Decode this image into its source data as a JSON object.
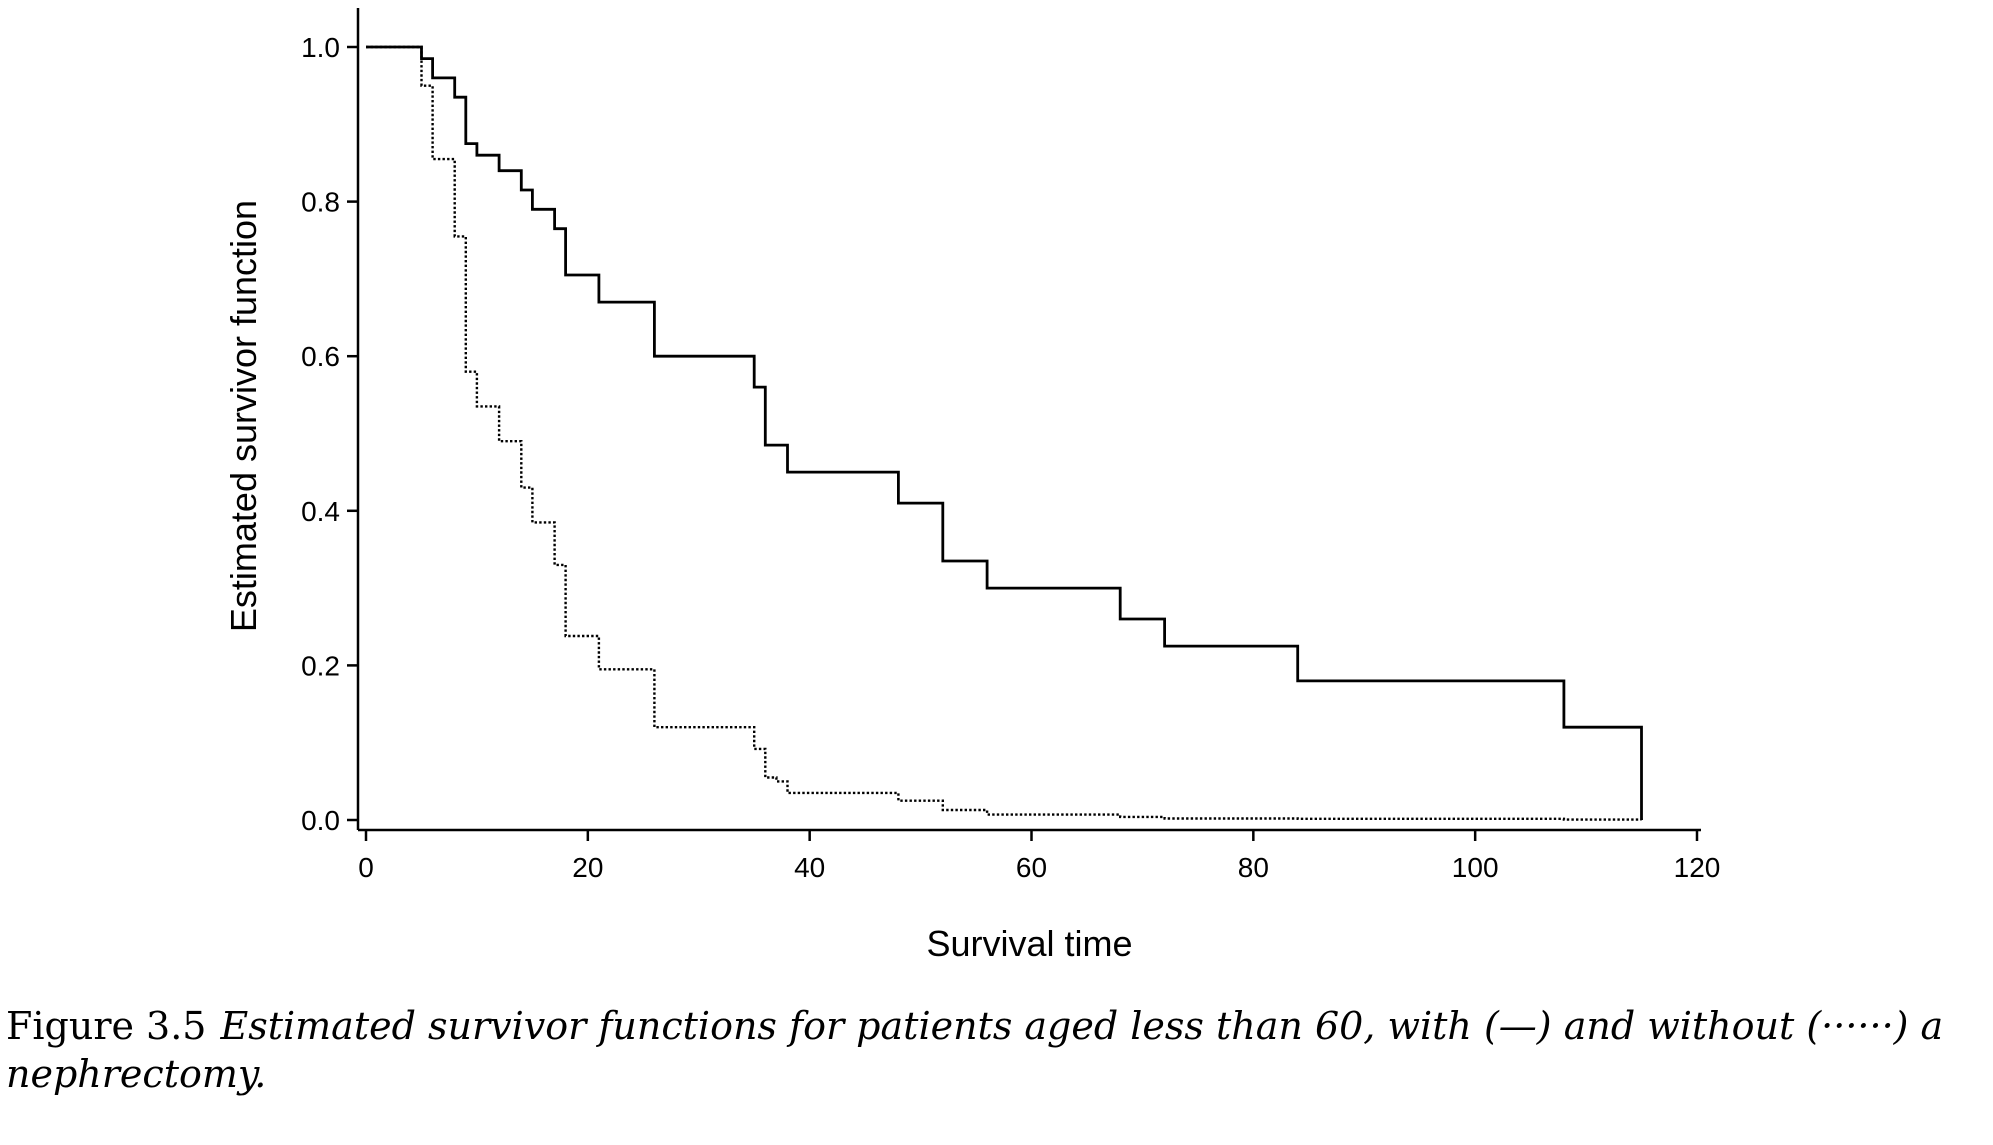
{
  "chart_data": {
    "type": "line",
    "step": true,
    "xlabel": "Survival time",
    "ylabel": "Estimated survivor function",
    "xlim": [
      0,
      120
    ],
    "ylim": [
      0,
      1.0
    ],
    "x_ticks": [
      "0",
      "20",
      "40",
      "60",
      "80",
      "100",
      "120"
    ],
    "y_ticks": [
      "0.0",
      "0.2",
      "0.4",
      "0.6",
      "0.8",
      "1.0"
    ],
    "grid": false,
    "legend": "none",
    "series": [
      {
        "style": "solid",
        "color": "#000000",
        "x": [
          0,
          5,
          6,
          8,
          9,
          10,
          12,
          14,
          15,
          17,
          18,
          21,
          26,
          35,
          36,
          37,
          38,
          48,
          52,
          56,
          68,
          72,
          84,
          108,
          115
        ],
        "y": [
          1.0,
          0.985,
          0.96,
          0.935,
          0.875,
          0.86,
          0.84,
          0.815,
          0.79,
          0.765,
          0.705,
          0.67,
          0.6,
          0.56,
          0.485,
          0.485,
          0.45,
          0.41,
          0.335,
          0.3,
          0.26,
          0.225,
          0.18,
          0.12,
          0.0
        ]
      },
      {
        "style": "dotted",
        "color": "#000000",
        "x": [
          0,
          5,
          6,
          8,
          9,
          10,
          12,
          14,
          15,
          17,
          18,
          21,
          26,
          35,
          36,
          37,
          38,
          48,
          52,
          56,
          68,
          72,
          84,
          108,
          115
        ],
        "y": [
          1.0,
          0.95,
          0.855,
          0.755,
          0.58,
          0.535,
          0.49,
          0.43,
          0.385,
          0.33,
          0.238,
          0.195,
          0.12,
          0.092,
          0.055,
          0.05,
          0.035,
          0.025,
          0.013,
          0.007,
          0.004,
          0.002,
          0.0015,
          0.0005,
          0.0
        ]
      }
    ]
  },
  "caption": {
    "number": "Figure 3.5",
    "text": "Estimated survivor functions for patients aged less than 60, with (—) and without (······) a nephrectomy."
  }
}
